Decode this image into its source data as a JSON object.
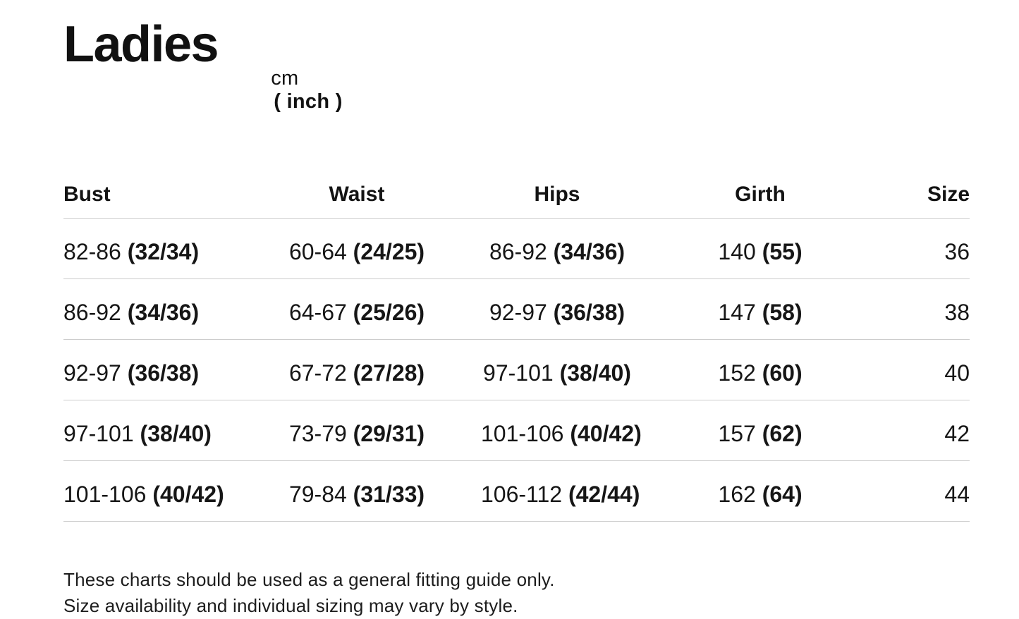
{
  "page": {
    "title": "Ladies",
    "unit_cm": "cm",
    "unit_inch": "( inch )"
  },
  "table": {
    "headers": [
      "Bust",
      "Waist",
      "Hips",
      "Girth",
      "Size"
    ],
    "rows": [
      {
        "measurements": [
          {
            "cm": "82-86",
            "inch": "(32/34)"
          },
          {
            "cm": "60-64",
            "inch": "(24/25)"
          },
          {
            "cm": "86-92",
            "inch": "(34/36)"
          },
          {
            "cm": "140",
            "inch": "(55)"
          }
        ],
        "size": "36"
      },
      {
        "measurements": [
          {
            "cm": "86-92",
            "inch": "(34/36)"
          },
          {
            "cm": "64-67",
            "inch": "(25/26)"
          },
          {
            "cm": "92-97",
            "inch": "(36/38)"
          },
          {
            "cm": "147",
            "inch": "(58)"
          }
        ],
        "size": "38"
      },
      {
        "measurements": [
          {
            "cm": "92-97",
            "inch": "(36/38)"
          },
          {
            "cm": "67-72",
            "inch": "(27/28)"
          },
          {
            "cm": "97-101",
            "inch": "(38/40)"
          },
          {
            "cm": "152",
            "inch": "(60)"
          }
        ],
        "size": "40"
      },
      {
        "measurements": [
          {
            "cm": "97-101",
            "inch": "(38/40)"
          },
          {
            "cm": "73-79",
            "inch": "(29/31)"
          },
          {
            "cm": "101-106",
            "inch": "(40/42)"
          },
          {
            "cm": "157",
            "inch": "(62)"
          }
        ],
        "size": "42"
      },
      {
        "measurements": [
          {
            "cm": "101-106",
            "inch": "(40/42)"
          },
          {
            "cm": "79-84",
            "inch": "(31/33)"
          },
          {
            "cm": "106-112",
            "inch": "(42/44)"
          },
          {
            "cm": "162",
            "inch": "(64)"
          }
        ],
        "size": "44"
      }
    ]
  },
  "footnote": {
    "line1": "These charts should be used as a general fitting guide only.",
    "line2": "Size availability and individual sizing may vary by style."
  }
}
